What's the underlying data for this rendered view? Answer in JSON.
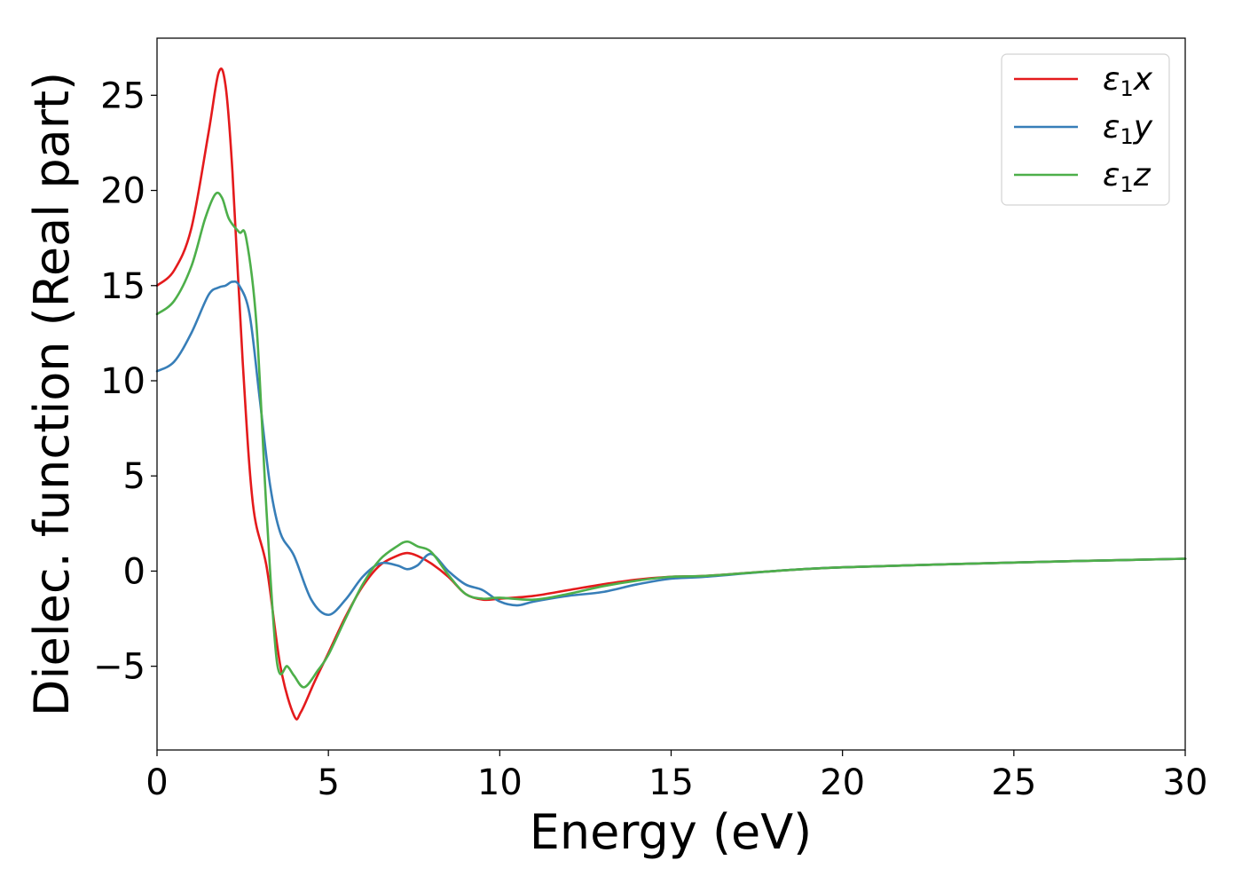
{
  "chart_data": {
    "type": "line",
    "title": "",
    "xlabel": "Energy (eV)",
    "ylabel": "Dielec. function (Real part)",
    "xlim": [
      0,
      30
    ],
    "ylim": [
      -9.4,
      28
    ],
    "xticks": [
      0,
      5,
      10,
      15,
      20,
      25,
      30
    ],
    "yticks": [
      -5,
      0,
      5,
      10,
      15,
      20,
      25
    ],
    "xtick_labels": [
      "0",
      "5",
      "10",
      "15",
      "20",
      "25",
      "30"
    ],
    "ytick_labels": [
      "−5",
      "0",
      "5",
      "10",
      "15",
      "20",
      "25"
    ],
    "grid": false,
    "legend_position": "top-right",
    "series": [
      {
        "name": "ε1x",
        "legend_symbol": "ε",
        "legend_sub": "1",
        "legend_var": "x",
        "color": "#e41a1c",
        "x": [
          0,
          0.5,
          1.0,
          1.5,
          1.8,
          2.0,
          2.2,
          2.5,
          2.8,
          3.2,
          3.6,
          4.0,
          4.2,
          4.6,
          5.0,
          5.5,
          6.0,
          6.5,
          7.0,
          7.3,
          7.6,
          8.0,
          8.5,
          9.0,
          9.5,
          10,
          11,
          12,
          13,
          14,
          15,
          16,
          18,
          20,
          25,
          30
        ],
        "y": [
          15.0,
          15.8,
          18.0,
          23.0,
          26.2,
          25.5,
          21.0,
          11.0,
          3.5,
          0.2,
          -5.0,
          -7.6,
          -7.4,
          -5.8,
          -4.3,
          -2.4,
          -0.8,
          0.3,
          0.8,
          0.95,
          0.8,
          0.4,
          -0.3,
          -1.2,
          -1.5,
          -1.45,
          -1.3,
          -1.0,
          -0.7,
          -0.45,
          -0.3,
          -0.25,
          0.0,
          0.2,
          0.45,
          0.65
        ]
      },
      {
        "name": "ε1y",
        "legend_symbol": "ε",
        "legend_sub": "1",
        "legend_var": "y",
        "color": "#377eb8",
        "x": [
          0,
          0.5,
          1.0,
          1.5,
          1.8,
          2.0,
          2.2,
          2.4,
          2.7,
          3.0,
          3.3,
          3.6,
          4.0,
          4.5,
          5.0,
          5.5,
          6.0,
          6.5,
          7.0,
          7.3,
          7.6,
          8.0,
          8.5,
          9.0,
          9.5,
          10,
          10.5,
          11,
          12,
          13,
          14,
          15,
          16,
          18,
          20,
          25,
          30
        ],
        "y": [
          10.5,
          11.0,
          12.5,
          14.5,
          14.9,
          15.0,
          15.2,
          15.0,
          13.5,
          9.0,
          4.5,
          2.0,
          0.8,
          -1.5,
          -2.3,
          -1.5,
          -0.3,
          0.4,
          0.3,
          0.1,
          0.3,
          0.9,
          0.0,
          -0.7,
          -1.0,
          -1.6,
          -1.8,
          -1.6,
          -1.3,
          -1.1,
          -0.7,
          -0.4,
          -0.3,
          0.0,
          0.2,
          0.45,
          0.65
        ]
      },
      {
        "name": "ε1z",
        "legend_symbol": "ε",
        "legend_sub": "1",
        "legend_var": "z",
        "color": "#4daf4a",
        "x": [
          0,
          0.5,
          1.0,
          1.4,
          1.7,
          1.9,
          2.1,
          2.4,
          2.6,
          2.9,
          3.2,
          3.5,
          3.8,
          4.0,
          4.3,
          4.7,
          5.0,
          5.5,
          6.0,
          6.5,
          7.0,
          7.3,
          7.6,
          8.0,
          8.5,
          9.0,
          9.5,
          10,
          11,
          12,
          13,
          14,
          15,
          16,
          18,
          20,
          25,
          30
        ],
        "y": [
          13.5,
          14.2,
          16.0,
          18.5,
          19.8,
          19.6,
          18.5,
          17.8,
          17.5,
          13.0,
          3.0,
          -4.8,
          -5.0,
          -5.5,
          -6.1,
          -5.2,
          -4.4,
          -2.5,
          -0.7,
          0.6,
          1.3,
          1.55,
          1.3,
          1.0,
          -0.2,
          -1.2,
          -1.45,
          -1.4,
          -1.5,
          -1.2,
          -0.8,
          -0.5,
          -0.3,
          -0.25,
          0.0,
          0.2,
          0.45,
          0.65
        ]
      }
    ]
  }
}
